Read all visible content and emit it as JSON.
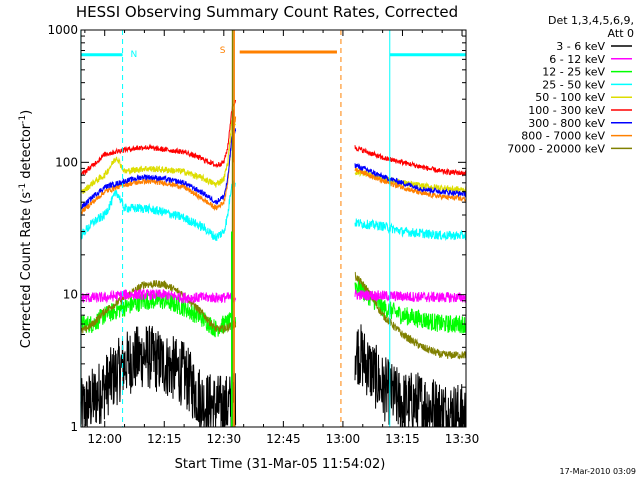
{
  "chart_data": {
    "type": "line",
    "title": "HESSI Observing Summary Count Rates, Corrected",
    "xlabel": "Start Time (31-Mar-05 11:54:02)",
    "ylabel": "Corrected Count Rate (s⁻¹ detector⁻¹)",
    "ylabel_parts": {
      "main": "Corrected Count Rate (s",
      "sup1": "-1",
      "mid": " detector",
      "sup2": "-1",
      "end": ")"
    },
    "x_range_min": [
      -5.97,
      91.0
    ],
    "x_ticks": [
      {
        "min": 0,
        "label": "12:00"
      },
      {
        "min": 15,
        "label": "12:15"
      },
      {
        "min": 30,
        "label": "12:30"
      },
      {
        "min": 45,
        "label": "12:45"
      },
      {
        "min": 60,
        "label": "13:00"
      },
      {
        "min": 75,
        "label": "13:15"
      },
      {
        "min": 90,
        "label": "13:30"
      }
    ],
    "y_scale": "log",
    "y_range": [
      1,
      1000
    ],
    "y_ticks": [
      {
        "value": 1,
        "label": "1"
      },
      {
        "value": 10,
        "label": "10"
      },
      {
        "value": 100,
        "label": "100"
      },
      {
        "value": 1000,
        "label": "1000"
      }
    ],
    "legend": {
      "placement": "right",
      "header": [
        "Det 1,3,4,5,6,9,",
        "Att 0"
      ],
      "entries": [
        {
          "label": "3 - 6 keV",
          "color": "#000000"
        },
        {
          "label": "6 - 12 keV",
          "color": "#ff00ff"
        },
        {
          "label": "12 - 25 keV",
          "color": "#00ff00"
        },
        {
          "label": "25 - 50 keV",
          "color": "#00ffff"
        },
        {
          "label": "50 - 100 keV",
          "color": "#dddd00"
        },
        {
          "label": "100 - 300 keV",
          "color": "#ff0000"
        },
        {
          "label": "300 - 800 keV",
          "color": "#0000ff"
        },
        {
          "label": "800 - 7000 keV",
          "color": "#ff8000"
        },
        {
          "label": "7000 - 20000 keV",
          "color": "#808000"
        }
      ]
    },
    "gaps_min": [
      [
        33.0,
        63.0
      ]
    ],
    "series": [
      {
        "color": "#ff0000",
        "noise": 0.02,
        "points": [
          [
            -6,
            80
          ],
          [
            -3,
            95
          ],
          [
            0,
            115
          ],
          [
            5,
            125
          ],
          [
            10,
            130
          ],
          [
            15,
            125
          ],
          [
            20,
            120
          ],
          [
            25,
            105
          ],
          [
            28,
            95
          ],
          [
            30,
            100
          ],
          [
            31,
            130
          ],
          [
            32,
            250
          ],
          [
            33,
            300
          ],
          [
            63,
            130
          ],
          [
            66,
            120
          ],
          [
            70,
            108
          ],
          [
            75,
            100
          ],
          [
            80,
            92
          ],
          [
            85,
            85
          ],
          [
            90,
            83
          ],
          [
            91,
            83
          ]
        ]
      },
      {
        "color": "#0000ff",
        "noise": 0.02,
        "points": [
          [
            -6,
            45
          ],
          [
            -3,
            55
          ],
          [
            0,
            65
          ],
          [
            5,
            72
          ],
          [
            10,
            78
          ],
          [
            15,
            75
          ],
          [
            20,
            70
          ],
          [
            25,
            58
          ],
          [
            28,
            50
          ],
          [
            30,
            55
          ],
          [
            31,
            75
          ],
          [
            32,
            150
          ],
          [
            33,
            180
          ],
          [
            63,
            95
          ],
          [
            66,
            88
          ],
          [
            70,
            78
          ],
          [
            75,
            70
          ],
          [
            80,
            63
          ],
          [
            85,
            60
          ],
          [
            90,
            58
          ],
          [
            91,
            58
          ]
        ]
      },
      {
        "color": "#ff8000",
        "noise": 0.02,
        "points": [
          [
            -6,
            42
          ],
          [
            -3,
            50
          ],
          [
            0,
            60
          ],
          [
            5,
            68
          ],
          [
            10,
            72
          ],
          [
            15,
            70
          ],
          [
            20,
            65
          ],
          [
            25,
            52
          ],
          [
            28,
            45
          ],
          [
            30,
            50
          ],
          [
            31,
            70
          ],
          [
            32,
            160
          ],
          [
            33,
            220
          ],
          [
            63,
            90
          ],
          [
            66,
            82
          ],
          [
            70,
            72
          ],
          [
            75,
            65
          ],
          [
            80,
            58
          ],
          [
            85,
            55
          ],
          [
            90,
            53
          ],
          [
            91,
            53
          ]
        ]
      },
      {
        "color": "#dddd00",
        "noise": 0.025,
        "points": [
          [
            -6,
            58
          ],
          [
            -3,
            70
          ],
          [
            0,
            80
          ],
          [
            3,
            110
          ],
          [
            5,
            85
          ],
          [
            10,
            90
          ],
          [
            15,
            88
          ],
          [
            20,
            85
          ],
          [
            25,
            75
          ],
          [
            28,
            68
          ],
          [
            30,
            75
          ],
          [
            31,
            100
          ],
          [
            32,
            200
          ],
          [
            63,
            85
          ],
          [
            66,
            82
          ],
          [
            70,
            75
          ],
          [
            75,
            70
          ],
          [
            80,
            66
          ],
          [
            85,
            64
          ],
          [
            90,
            62
          ],
          [
            91,
            62
          ]
        ]
      },
      {
        "color": "#00ffff",
        "noise": 0.035,
        "points": [
          [
            -6,
            28
          ],
          [
            -3,
            35
          ],
          [
            0,
            40
          ],
          [
            3,
            60
          ],
          [
            5,
            45
          ],
          [
            10,
            45
          ],
          [
            15,
            42
          ],
          [
            20,
            38
          ],
          [
            25,
            32
          ],
          [
            28,
            27
          ],
          [
            30,
            30
          ],
          [
            31,
            40
          ],
          [
            32,
            70
          ],
          [
            63,
            35
          ],
          [
            66,
            34
          ],
          [
            70,
            33
          ],
          [
            75,
            30
          ],
          [
            80,
            29
          ],
          [
            85,
            28
          ],
          [
            90,
            28
          ],
          [
            91,
            28
          ]
        ]
      },
      {
        "color": "#ff00ff",
        "noise": 0.04,
        "points": [
          [
            -6,
            9.5
          ],
          [
            0,
            9.5
          ],
          [
            5,
            10
          ],
          [
            10,
            10
          ],
          [
            15,
            10
          ],
          [
            20,
            9.5
          ],
          [
            25,
            9.5
          ],
          [
            30,
            9.5
          ],
          [
            63,
            10
          ],
          [
            70,
            9.8
          ],
          [
            80,
            9.6
          ],
          [
            91,
            9.5
          ]
        ]
      },
      {
        "color": "#808000",
        "noise": 0.03,
        "points": [
          [
            -6,
            5.2
          ],
          [
            -3,
            6
          ],
          [
            0,
            7.5
          ],
          [
            5,
            9.5
          ],
          [
            10,
            12
          ],
          [
            15,
            12
          ],
          [
            20,
            10
          ],
          [
            25,
            7
          ],
          [
            28,
            5.5
          ],
          [
            30,
            5.5
          ],
          [
            63,
            14
          ],
          [
            66,
            11
          ],
          [
            70,
            7
          ],
          [
            75,
            5
          ],
          [
            80,
            4
          ],
          [
            85,
            3.5
          ],
          [
            91,
            3.5
          ]
        ]
      },
      {
        "color": "#00ff00",
        "noise": 0.07,
        "points": [
          [
            -6,
            6
          ],
          [
            -3,
            6
          ],
          [
            0,
            7
          ],
          [
            5,
            8
          ],
          [
            10,
            9
          ],
          [
            15,
            9
          ],
          [
            20,
            8
          ],
          [
            25,
            6.5
          ],
          [
            28,
            5.5
          ],
          [
            30,
            6
          ],
          [
            63,
            12
          ],
          [
            66,
            10
          ],
          [
            70,
            8
          ],
          [
            75,
            7
          ],
          [
            80,
            6.5
          ],
          [
            85,
            6
          ],
          [
            91,
            6
          ]
        ]
      },
      {
        "color": "#000000",
        "noise": 0.25,
        "points": [
          [
            -6,
            1.3
          ],
          [
            0,
            2
          ],
          [
            5,
            3
          ],
          [
            10,
            3.5
          ],
          [
            15,
            3
          ],
          [
            20,
            2.5
          ],
          [
            25,
            1.5
          ],
          [
            30,
            1.4
          ],
          [
            63,
            4
          ],
          [
            66,
            3
          ],
          [
            70,
            2
          ],
          [
            75,
            1.5
          ],
          [
            80,
            1.5
          ],
          [
            85,
            1.3
          ],
          [
            91,
            1.2
          ]
        ]
      }
    ],
    "spike_series": [
      {
        "color": "#ff0000",
        "at_min": 32.4,
        "from": 100,
        "to": 250
      },
      {
        "color": "#ff8000",
        "at_min": 32.6,
        "from": 1,
        "to": 1000
      },
      {
        "color": "#808000",
        "at_min": 32.2,
        "from": 1,
        "to": 1000
      },
      {
        "color": "#00ff00",
        "at_min": 32.0,
        "from": 1,
        "to": 30
      }
    ],
    "annotations": {
      "cyan_vlines_min": [
        -6.0,
        4.5,
        71.8,
        91.0
      ],
      "orange_dashed_vlines_min": [
        32.6,
        59.5
      ],
      "night_bars_min": [
        [
          -6.0,
          4.5
        ],
        [
          71.8,
          91.0
        ]
      ],
      "saa_bar_min": [
        34.0,
        58.5
      ],
      "n_marker": {
        "label": "N",
        "at_min": 5.0
      },
      "s_marker": {
        "label": "S",
        "at_min": 31.5
      },
      "bar_level": 650
    },
    "grid": false
  },
  "footer_timestamp": "17-Mar-2010 03:09"
}
